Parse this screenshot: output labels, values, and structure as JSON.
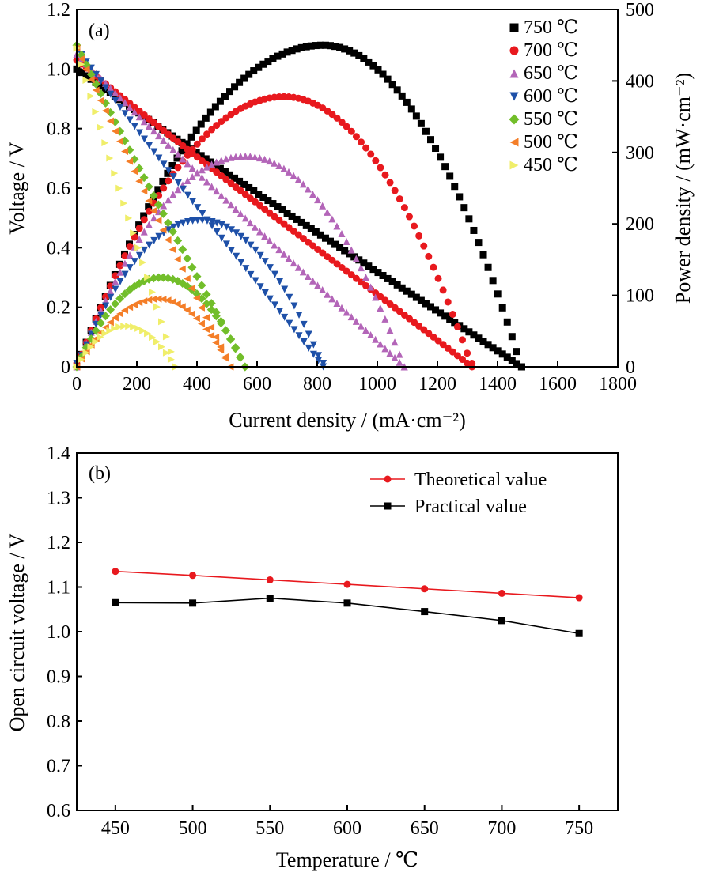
{
  "chart_data": [
    {
      "panel_label": "(a)",
      "type": "scatter",
      "xlabel": "Current density / (mA·cm⁻²)",
      "ylabel": "Voltage / V",
      "y2label": "Power density / (mW·cm⁻²)",
      "xlim": [
        0,
        1800
      ],
      "ylim": [
        0,
        1.2
      ],
      "y2lim": [
        0,
        500
      ],
      "x_ticks": [
        "0",
        "200",
        "400",
        "600",
        "800",
        "1000",
        "1200",
        "1400",
        "1600",
        "1800"
      ],
      "y_ticks": [
        "0",
        "0.2",
        "0.4",
        "0.6",
        "0.8",
        "1.0",
        "1.2"
      ],
      "y2_ticks": [
        "0",
        "100",
        "200",
        "300",
        "400",
        "500"
      ],
      "legend_position": "top-right",
      "series": [
        {
          "name": "750 ℃",
          "color": "#000000",
          "marker": "square",
          "voc": 1.0,
          "i_max": 1480,
          "p_peak": 450,
          "i_peak": 820,
          "p_end": 0
        },
        {
          "name": "700 ℃",
          "color": "#e8191e",
          "marker": "circle",
          "voc": 1.03,
          "i_max": 1315,
          "p_peak": 378,
          "i_peak": 690,
          "p_end": 5
        },
        {
          "name": "650 ℃",
          "color": "#b365b8",
          "marker": "triangle-up",
          "voc": 1.05,
          "i_max": 1090,
          "p_peak": 295,
          "i_peak": 560,
          "p_end": 0
        },
        {
          "name": "600 ℃",
          "color": "#1e50a8",
          "marker": "triangle-down",
          "voc": 1.07,
          "i_max": 820,
          "p_peak": 205,
          "i_peak": 410,
          "p_end": 5
        },
        {
          "name": "550 ℃",
          "color": "#72be2a",
          "marker": "diamond",
          "voc": 1.08,
          "i_max": 560,
          "p_peak": 125,
          "i_peak": 280,
          "p_end": 0
        },
        {
          "name": "500 ℃",
          "color": "#f47e28",
          "marker": "triangle-left",
          "voc": 1.07,
          "i_max": 510,
          "p_peak": 95,
          "i_peak": 270,
          "p_end": 0
        },
        {
          "name": "450 ℃",
          "color": "#f0ee6a",
          "marker": "triangle-right",
          "voc": 1.07,
          "i_max": 330,
          "p_peak": 57,
          "i_peak": 165,
          "p_end": 0
        }
      ]
    },
    {
      "panel_label": "(b)",
      "type": "line",
      "xlabel": "Temperature / ℃",
      "ylabel": "Open circuit voltage / V",
      "xlim": [
        425,
        775
      ],
      "ylim": [
        0.6,
        1.4
      ],
      "x_ticks": [
        "450",
        "500",
        "550",
        "600",
        "650",
        "700",
        "750"
      ],
      "y_ticks": [
        "0.6",
        "0.7",
        "0.8",
        "0.9",
        "1.0",
        "1.1",
        "1.2",
        "1.3",
        "1.4"
      ],
      "legend_position": "top-right",
      "x": [
        450,
        500,
        550,
        600,
        650,
        700,
        750
      ],
      "series": [
        {
          "name": "Theoretical value",
          "color": "#e8191e",
          "marker": "circle",
          "values": [
            1.135,
            1.126,
            1.116,
            1.106,
            1.096,
            1.086,
            1.076
          ]
        },
        {
          "name": "Practical value",
          "color": "#000000",
          "marker": "square",
          "values": [
            1.065,
            1.064,
            1.075,
            1.064,
            1.045,
            1.025,
            0.996
          ]
        }
      ]
    }
  ]
}
